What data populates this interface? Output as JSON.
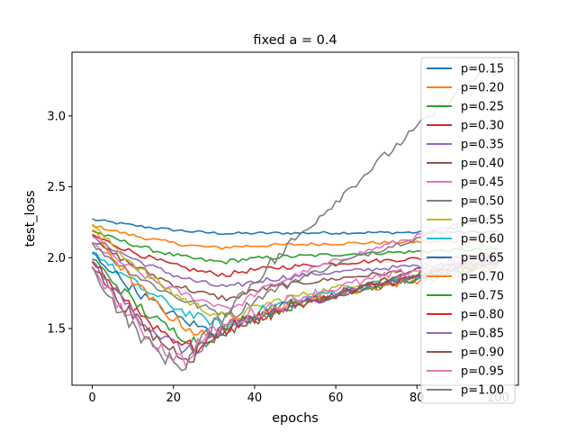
{
  "chart_data": {
    "type": "line",
    "title": "fixed a = 0.4",
    "xlabel": "epochs",
    "ylabel": "test_loss",
    "xlim": [
      -5,
      105
    ],
    "ylim": [
      1.1,
      3.45
    ],
    "xticks": [
      "0",
      "20",
      "40",
      "60",
      "80",
      "100"
    ],
    "yticks": [
      "1.5",
      "2.0",
      "2.5",
      "3.0"
    ],
    "legend_position": "top-right",
    "grid": false,
    "series": [
      {
        "name": "p=0.15",
        "color": "#1f77b4",
        "start": 2.27,
        "min": 2.17,
        "min_epoch": 35,
        "end": 2.18
      },
      {
        "name": "p=0.20",
        "color": "#ff7f0e",
        "start": 2.23,
        "min": 2.07,
        "min_epoch": 32,
        "end": 2.12
      },
      {
        "name": "p=0.25",
        "color": "#2ca02c",
        "start": 2.19,
        "min": 1.97,
        "min_epoch": 33,
        "end": 2.06
      },
      {
        "name": "p=0.30",
        "color": "#d62728",
        "start": 2.16,
        "min": 1.88,
        "min_epoch": 34,
        "end": 2.02
      },
      {
        "name": "p=0.35",
        "color": "#9467bd",
        "start": 2.14,
        "min": 1.79,
        "min_epoch": 35,
        "end": 1.98
      },
      {
        "name": "p=0.40",
        "color": "#8c564b",
        "start": 2.12,
        "min": 1.71,
        "min_epoch": 35,
        "end": 1.96
      },
      {
        "name": "p=0.45",
        "color": "#e377c2",
        "start": 2.1,
        "min": 1.65,
        "min_epoch": 36,
        "end": 2.3
      },
      {
        "name": "p=0.50",
        "color": "#7f7f7f",
        "start": 2.09,
        "min": 1.6,
        "min_epoch": 36,
        "end": 2.3
      },
      {
        "name": "p=0.55",
        "color": "#bcbd22",
        "start": 2.23,
        "min": 1.57,
        "min_epoch": 36,
        "end": 1.96
      },
      {
        "name": "p=0.60",
        "color": "#17becf",
        "start": 2.05,
        "min": 1.52,
        "min_epoch": 35,
        "end": 1.95
      },
      {
        "name": "p=0.65",
        "color": "#1f77b4",
        "start": 2.03,
        "min": 1.47,
        "min_epoch": 33,
        "end": 1.94
      },
      {
        "name": "p=0.70",
        "color": "#ff7f0e",
        "start": 2.2,
        "min": 1.44,
        "min_epoch": 30,
        "end": 1.93
      },
      {
        "name": "p=0.75",
        "color": "#2ca02c",
        "start": 2.0,
        "min": 1.4,
        "min_epoch": 28,
        "end": 1.95
      },
      {
        "name": "p=0.80",
        "color": "#d62728",
        "start": 1.98,
        "min": 1.36,
        "min_epoch": 27,
        "end": 1.97
      },
      {
        "name": "p=0.85",
        "color": "#9467bd",
        "start": 1.97,
        "min": 1.33,
        "min_epoch": 26,
        "end": 1.98
      },
      {
        "name": "p=0.90",
        "color": "#8c564b",
        "start": 1.95,
        "min": 1.3,
        "min_epoch": 25,
        "end": 2.0
      },
      {
        "name": "p=0.95",
        "color": "#e377c2",
        "start": 1.94,
        "min": 1.27,
        "min_epoch": 24,
        "end": 2.02
      },
      {
        "name": "p=1.00",
        "color": "#7f7f7f",
        "start": 1.92,
        "min": 1.24,
        "min_epoch": 23,
        "end": 3.3
      }
    ]
  }
}
